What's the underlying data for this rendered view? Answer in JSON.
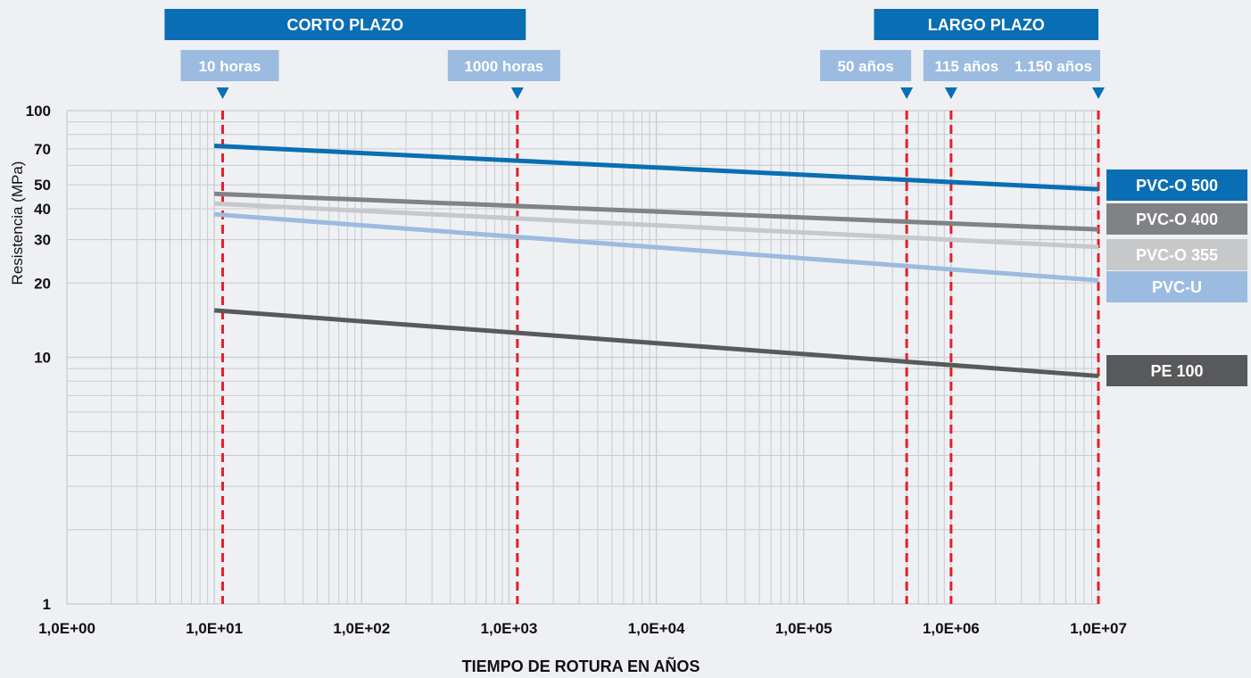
{
  "chart_data": {
    "type": "line",
    "xlabel": "TIEMPO DE ROTURA EN AÑOS",
    "ylabel": "Resistencia (MPa)",
    "xscale": "log",
    "yscale": "log",
    "xlim": [
      1,
      10000000
    ],
    "ylim": [
      1,
      100
    ],
    "grid": true,
    "x_ticks": [
      {
        "value": 1,
        "label": "1,0E+00"
      },
      {
        "value": 10,
        "label": "1,0E+01"
      },
      {
        "value": 100,
        "label": "1,0E+02"
      },
      {
        "value": 1000,
        "label": "1,0E+03"
      },
      {
        "value": 10000,
        "label": "1,0E+04"
      },
      {
        "value": 100000,
        "label": "1,0E+05"
      },
      {
        "value": 1000000,
        "label": "1,0E+06"
      },
      {
        "value": 10000000,
        "label": "1,0E+07"
      }
    ],
    "y_ticks": [
      {
        "value": 1,
        "label": "1"
      },
      {
        "value": 10,
        "label": "10"
      },
      {
        "value": 20,
        "label": "20"
      },
      {
        "value": 30,
        "label": "30"
      },
      {
        "value": 40,
        "label": "40"
      },
      {
        "value": 50,
        "label": "50"
      },
      {
        "value": 70,
        "label": "70"
      },
      {
        "value": 100,
        "label": "100"
      }
    ],
    "legend_placement": "right",
    "series": [
      {
        "name": "PVC-O 500",
        "color": "#0a6eb4",
        "x": [
          10,
          10000000
        ],
        "y": [
          72,
          48
        ]
      },
      {
        "name": "PVC-O 400",
        "color": "#808285",
        "x": [
          10,
          10000000
        ],
        "y": [
          46,
          33
        ]
      },
      {
        "name": "PVC-O 355",
        "color": "#c6c8ca",
        "x": [
          10,
          10000000
        ],
        "y": [
          42,
          28
        ]
      },
      {
        "name": "PVC-U",
        "color": "#9bbbe0",
        "x": [
          10,
          10000000
        ],
        "y": [
          38,
          20.5
        ]
      },
      {
        "name": "PE 100",
        "color": "#58595b",
        "x": [
          10,
          10000000
        ],
        "y": [
          15.5,
          8.4
        ]
      }
    ],
    "reference_lines": [
      {
        "x": 11.4,
        "label": "10 horas",
        "period": "corto"
      },
      {
        "x": 1140,
        "label": "1000 horas",
        "period": "corto"
      },
      {
        "x": 500000,
        "label": "50 años",
        "period": "largo"
      },
      {
        "x": 1000000,
        "label": "115 años",
        "period": "largo"
      },
      {
        "x": 10000000,
        "label": "1.150 años",
        "period": "largo"
      }
    ],
    "periods": [
      {
        "label": "CORTO PLAZO",
        "x_from": 4.6,
        "x_to": 1300
      },
      {
        "label": "LARGO PLAZO",
        "x_from": 300000,
        "x_to": 10000000
      }
    ],
    "colors": {
      "reference_line": "#e3202c",
      "banner": "#0a6eb4",
      "tag": "#9bbbe0",
      "marker": "#0a6eb4",
      "grid": "#c8cbcf"
    }
  }
}
